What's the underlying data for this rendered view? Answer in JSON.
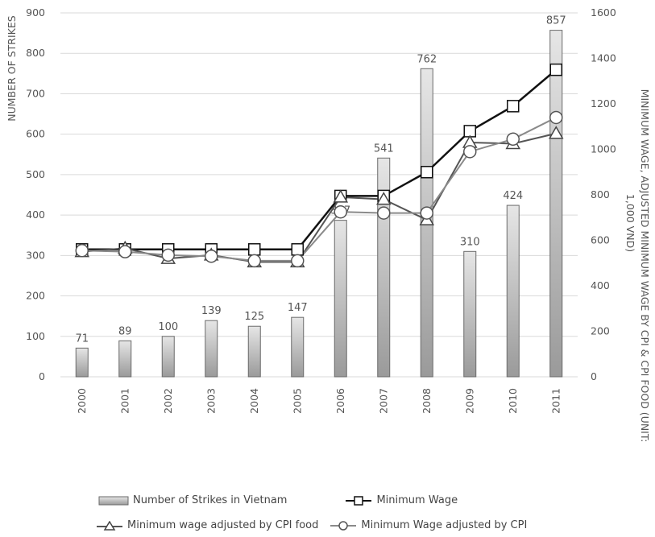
{
  "chart_data": {
    "type": "bar+line",
    "categories": [
      "2000",
      "2001",
      "2002",
      "2003",
      "2004",
      "2005",
      "2006",
      "2007",
      "2008",
      "2009",
      "2010",
      "2011"
    ],
    "y_left": {
      "label": "NUMBER OF STRIKES",
      "min": 0,
      "max": 900,
      "ticks": [
        "0",
        "100",
        "200",
        "300",
        "400",
        "500",
        "600",
        "700",
        "800",
        "900"
      ]
    },
    "y_right": {
      "label_line1": "MINIMUM WAGE, ADJUSTED MINIMUM WAGE BY CPI & CPI FOOD (UNIT:",
      "label_line2": "1,000 VND)",
      "min": 0,
      "max": 1600,
      "ticks": [
        "0",
        "200",
        "400",
        "600",
        "800",
        "1000",
        "1200",
        "1400",
        "1600"
      ]
    },
    "bars": {
      "name": "Number of Strikes in Vietnam",
      "values": [
        71,
        89,
        100,
        139,
        125,
        147,
        387,
        541,
        762,
        310,
        424,
        857
      ],
      "labels": [
        "71",
        "89",
        "100",
        "139",
        "125",
        "147",
        "387",
        "541",
        "762",
        "310",
        "424",
        "857"
      ]
    },
    "series": [
      {
        "name": "Minimum Wage",
        "marker": "square",
        "color": "#111111",
        "values": [
          560,
          560,
          560,
          560,
          560,
          560,
          795,
          795,
          900,
          1080,
          1190,
          1350
        ]
      },
      {
        "name": "Minimum wage adjusted by CPI food",
        "marker": "triangle",
        "color": "#555555",
        "values": [
          550,
          565,
          520,
          535,
          505,
          505,
          790,
          780,
          690,
          1030,
          1025,
          1070
        ]
      },
      {
        "name": "Minimum Wage adjusted by CPI",
        "marker": "circle",
        "color": "#8a8a8a",
        "values": [
          555,
          550,
          535,
          530,
          510,
          510,
          725,
          720,
          720,
          990,
          1045,
          1140
        ]
      }
    ],
    "gridlines": true,
    "legend_position": "bottom"
  },
  "colors": {
    "bar_fill_top": "#e4e4e4",
    "bar_fill_bottom": "#9c9c9c",
    "bar_stroke": "#6a6a6a",
    "grid": "#d9d9d9",
    "axis_text": "#555555"
  }
}
